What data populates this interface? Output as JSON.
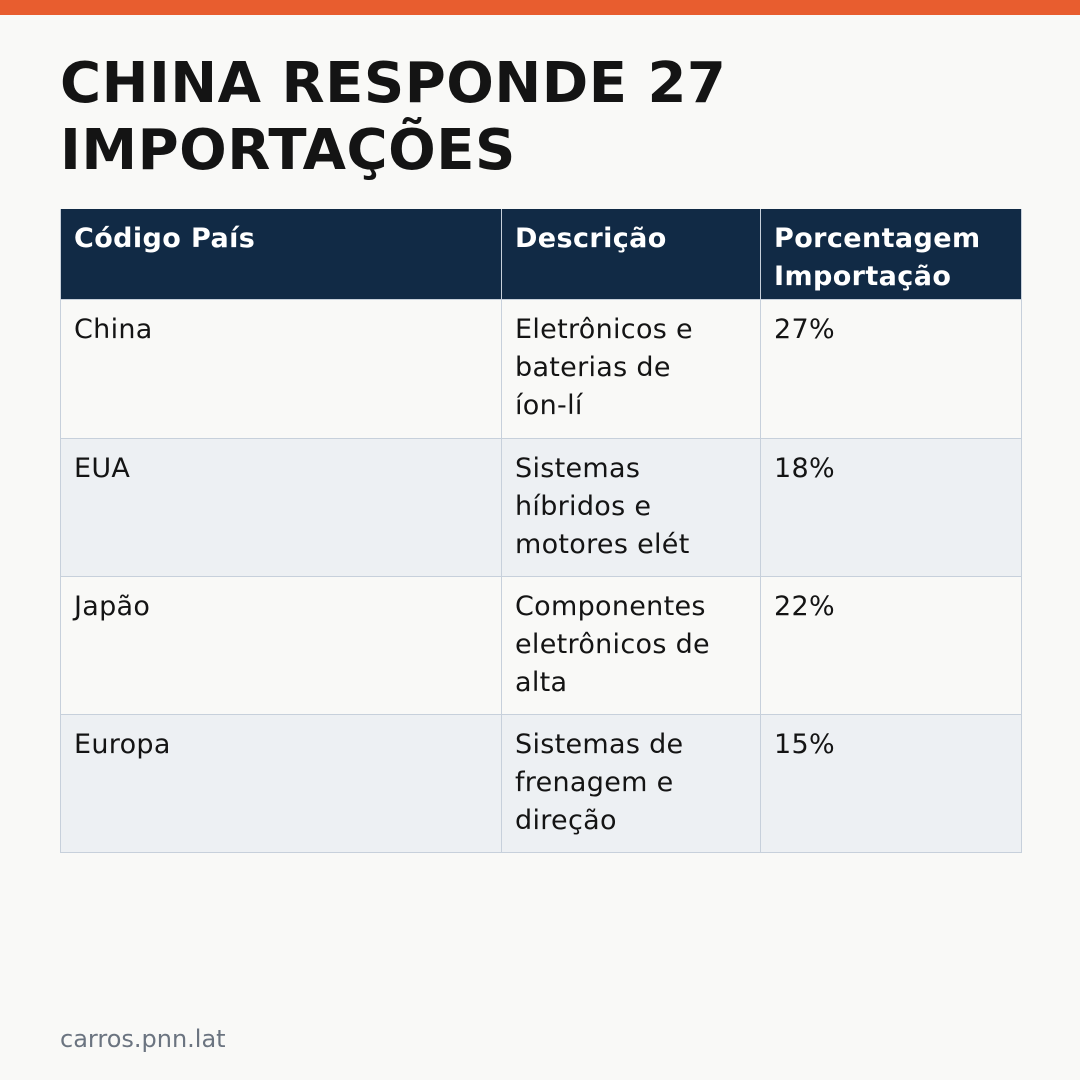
{
  "colors": {
    "accent_bar": "#e85d2f",
    "header_background": "#112a45",
    "header_text": "#ffffff",
    "row_alternate": "#edf0f3",
    "background": "#f9f9f7",
    "text": "#141414",
    "footer_text": "#6b7480"
  },
  "title": {
    "line1": "CHINA RESPONDE 27",
    "line2": "IMPORTAÇÕES"
  },
  "table": {
    "headers": [
      {
        "line1": "Código País",
        "line2": ""
      },
      {
        "line1": "Descrição",
        "line2": ""
      },
      {
        "line1": "Porcentagem",
        "line2": "Importação"
      }
    ],
    "rows": [
      {
        "country": "China",
        "description": [
          "Eletrônicos e",
          "baterias de",
          "íon-lí"
        ],
        "percentage": "27%"
      },
      {
        "country": "EUA",
        "description": [
          "Sistemas",
          "híbridos e",
          "motores elét"
        ],
        "percentage": "18%"
      },
      {
        "country": "Japão",
        "description": [
          "Componentes",
          "eletrônicos de",
          "alta"
        ],
        "percentage": "22%"
      },
      {
        "country": "Europa",
        "description": [
          "Sistemas de",
          "frenagem e",
          "direção"
        ],
        "percentage": "15%"
      }
    ]
  },
  "footer": {
    "source": "carros.pnn.lat"
  }
}
